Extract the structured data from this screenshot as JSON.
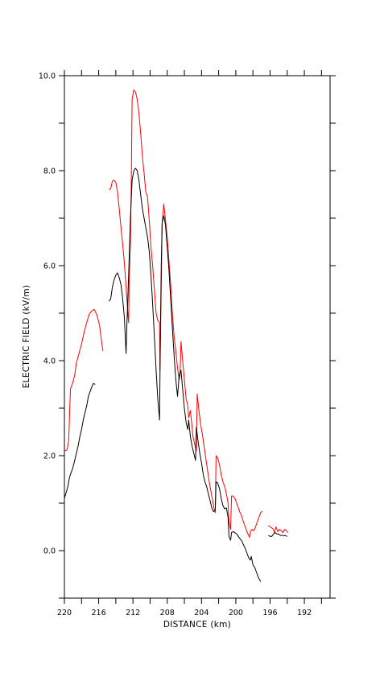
{
  "chart_data": {
    "type": "line",
    "title": "",
    "xlabel": "DISTANCE (km)",
    "ylabel": "ELECTRIC FIELD (kV/m)",
    "xlim": [
      220,
      189
    ],
    "ylim": [
      -1.0,
      10.0
    ],
    "x_reversed": true,
    "x_ticks": [
      220,
      216,
      212,
      208,
      204,
      200,
      196,
      192
    ],
    "x_tick_labels": [
      "220",
      "216",
      "212",
      "208",
      "204",
      "200",
      "196",
      "192"
    ],
    "x_minor_ticks": [
      218,
      214,
      210,
      206,
      202,
      198,
      194,
      190
    ],
    "y_ticks": [
      0,
      2,
      4,
      6,
      8,
      10
    ],
    "y_tick_labels": [
      "0.0",
      "2.0",
      "4.0",
      "6.0",
      "8.0",
      "10.0"
    ],
    "y_minor_ticks": [
      -1,
      1,
      3,
      5,
      7,
      9
    ],
    "grid": false,
    "series_colors": [
      "#ff0000",
      "#000000"
    ],
    "series": [
      {
        "color": "#ff0000",
        "segments": [
          [
            [
              220.0,
              2.1
            ],
            [
              219.7,
              2.12
            ],
            [
              219.5,
              2.3
            ],
            [
              219.3,
              3.4
            ],
            [
              219.0,
              3.55
            ],
            [
              218.8,
              3.7
            ],
            [
              218.6,
              3.95
            ],
            [
              218.3,
              4.15
            ],
            [
              218.0,
              4.35
            ],
            [
              217.7,
              4.6
            ],
            [
              217.4,
              4.8
            ],
            [
              217.1,
              4.98
            ],
            [
              216.8,
              5.05
            ],
            [
              216.5,
              5.08
            ],
            [
              216.2,
              4.95
            ],
            [
              215.9,
              4.75
            ],
            [
              215.7,
              4.45
            ],
            [
              215.5,
              4.2
            ]
          ],
          [
            [
              214.8,
              7.6
            ],
            [
              214.6,
              7.62
            ],
            [
              214.4,
              7.78
            ],
            [
              214.2,
              7.8
            ],
            [
              214.0,
              7.75
            ],
            [
              213.8,
              7.55
            ],
            [
              213.6,
              7.2
            ],
            [
              213.4,
              6.8
            ],
            [
              213.2,
              6.45
            ],
            [
              213.0,
              6.05
            ],
            [
              212.8,
              5.55
            ],
            [
              212.6,
              5.0
            ],
            [
              212.5,
              4.8
            ],
            [
              212.45,
              5.6
            ],
            [
              212.3,
              6.5
            ],
            [
              212.2,
              7.6
            ],
            [
              212.1,
              9.5
            ],
            [
              211.9,
              9.7
            ],
            [
              211.7,
              9.65
            ],
            [
              211.5,
              9.5
            ],
            [
              211.3,
              9.2
            ],
            [
              211.1,
              8.8
            ],
            [
              210.9,
              8.3
            ],
            [
              210.7,
              7.95
            ],
            [
              210.5,
              7.55
            ],
            [
              210.3,
              7.45
            ],
            [
              210.1,
              6.95
            ],
            [
              209.9,
              6.4
            ],
            [
              209.7,
              6.0
            ],
            [
              209.5,
              5.5
            ],
            [
              209.3,
              5.0
            ],
            [
              209.1,
              4.85
            ],
            [
              208.9,
              4.8
            ],
            [
              208.85,
              3.8
            ],
            [
              208.75,
              5.0
            ],
            [
              208.6,
              6.9
            ],
            [
              208.4,
              7.3
            ],
            [
              208.2,
              6.95
            ],
            [
              208.0,
              6.6
            ],
            [
              207.8,
              6.1
            ],
            [
              207.6,
              5.6
            ],
            [
              207.4,
              5.0
            ],
            [
              207.2,
              4.5
            ],
            [
              207.0,
              4.2
            ],
            [
              206.8,
              3.85
            ],
            [
              206.6,
              3.6
            ],
            [
              206.5,
              3.7
            ],
            [
              206.4,
              4.4
            ],
            [
              206.2,
              4.0
            ],
            [
              206.0,
              3.6
            ],
            [
              205.8,
              3.2
            ],
            [
              205.6,
              3.05
            ],
            [
              205.5,
              2.8
            ],
            [
              205.3,
              2.95
            ],
            [
              205.1,
              2.6
            ],
            [
              205.0,
              2.4
            ],
            [
              204.8,
              2.25
            ],
            [
              204.6,
              2.1
            ],
            [
              204.5,
              3.3
            ],
            [
              204.3,
              2.95
            ],
            [
              204.1,
              2.65
            ],
            [
              203.9,
              2.45
            ],
            [
              203.7,
              2.2
            ],
            [
              203.5,
              1.95
            ],
            [
              203.3,
              1.7
            ],
            [
              203.1,
              1.45
            ],
            [
              202.9,
              1.25
            ],
            [
              202.7,
              1.05
            ],
            [
              202.5,
              0.85
            ],
            [
              202.4,
              0.8
            ],
            [
              202.3,
              2.0
            ],
            [
              202.1,
              1.95
            ],
            [
              201.9,
              1.8
            ],
            [
              201.7,
              1.6
            ],
            [
              201.5,
              1.45
            ],
            [
              201.3,
              1.35
            ],
            [
              201.1,
              1.2
            ],
            [
              200.9,
              1.0
            ],
            [
              200.8,
              0.6
            ],
            [
              200.6,
              0.45
            ],
            [
              200.5,
              1.15
            ],
            [
              200.3,
              1.15
            ],
            [
              200.1,
              1.1
            ],
            [
              199.9,
              1.0
            ],
            [
              199.7,
              0.9
            ],
            [
              199.5,
              0.8
            ],
            [
              199.3,
              0.72
            ],
            [
              199.1,
              0.6
            ],
            [
              198.9,
              0.5
            ],
            [
              198.7,
              0.4
            ],
            [
              198.5,
              0.32
            ],
            [
              198.4,
              0.28
            ],
            [
              198.3,
              0.4
            ],
            [
              198.1,
              0.45
            ],
            [
              197.9,
              0.42
            ],
            [
              197.7,
              0.5
            ],
            [
              197.5,
              0.6
            ],
            [
              197.3,
              0.7
            ],
            [
              197.1,
              0.8
            ],
            [
              196.9,
              0.83
            ]
          ],
          [
            [
              196.2,
              0.53
            ],
            [
              196.0,
              0.5
            ],
            [
              195.8,
              0.48
            ],
            [
              195.6,
              0.45
            ],
            [
              195.5,
              0.38
            ],
            [
              195.3,
              0.5
            ],
            [
              195.1,
              0.4
            ],
            [
              194.9,
              0.45
            ],
            [
              194.7,
              0.42
            ],
            [
              194.5,
              0.38
            ],
            [
              194.3,
              0.45
            ],
            [
              194.1,
              0.42
            ],
            [
              193.9,
              0.38
            ]
          ]
        ]
      },
      {
        "color": "#000000",
        "segments": [
          [
            [
              220.0,
              1.1
            ],
            [
              219.8,
              1.22
            ],
            [
              219.6,
              1.35
            ],
            [
              219.4,
              1.55
            ],
            [
              219.2,
              1.65
            ],
            [
              219.0,
              1.75
            ],
            [
              218.8,
              1.9
            ],
            [
              218.6,
              2.05
            ],
            [
              218.4,
              2.2
            ],
            [
              218.2,
              2.4
            ],
            [
              218.0,
              2.55
            ],
            [
              217.8,
              2.75
            ],
            [
              217.6,
              2.9
            ],
            [
              217.4,
              3.05
            ],
            [
              217.2,
              3.25
            ],
            [
              217.0,
              3.35
            ],
            [
              216.8,
              3.45
            ],
            [
              216.6,
              3.52
            ],
            [
              216.4,
              3.5
            ]
          ],
          [
            [
              214.8,
              5.25
            ],
            [
              214.6,
              5.3
            ],
            [
              214.4,
              5.55
            ],
            [
              214.2,
              5.7
            ],
            [
              214.0,
              5.8
            ],
            [
              213.8,
              5.85
            ],
            [
              213.6,
              5.75
            ],
            [
              213.4,
              5.6
            ],
            [
              213.2,
              5.3
            ],
            [
              213.0,
              4.9
            ],
            [
              212.8,
              4.15
            ],
            [
              212.7,
              4.8
            ],
            [
              212.5,
              5.8
            ],
            [
              212.3,
              7.0
            ],
            [
              212.1,
              7.8
            ],
            [
              211.9,
              8.0
            ],
            [
              211.7,
              8.05
            ],
            [
              211.5,
              8.0
            ],
            [
              211.3,
              7.8
            ],
            [
              211.1,
              7.5
            ],
            [
              210.9,
              7.2
            ],
            [
              210.7,
              7.0
            ],
            [
              210.5,
              6.8
            ],
            [
              210.3,
              6.6
            ],
            [
              210.1,
              6.3
            ],
            [
              209.9,
              5.8
            ],
            [
              209.7,
              5.2
            ],
            [
              209.5,
              4.5
            ],
            [
              209.3,
              3.8
            ],
            [
              209.1,
              3.2
            ],
            [
              208.9,
              2.75
            ],
            [
              208.8,
              4.5
            ],
            [
              208.7,
              6.0
            ],
            [
              208.6,
              6.9
            ],
            [
              208.4,
              7.05
            ],
            [
              208.2,
              6.85
            ],
            [
              208.0,
              6.4
            ],
            [
              207.8,
              5.9
            ],
            [
              207.6,
              5.3
            ],
            [
              207.4,
              4.7
            ],
            [
              207.2,
              4.1
            ],
            [
              207.0,
              3.6
            ],
            [
              206.8,
              3.25
            ],
            [
              206.6,
              3.7
            ],
            [
              206.4,
              3.8
            ],
            [
              206.2,
              3.4
            ],
            [
              206.0,
              3.0
            ],
            [
              205.8,
              2.7
            ],
            [
              205.6,
              2.55
            ],
            [
              205.5,
              2.75
            ],
            [
              205.3,
              2.4
            ],
            [
              205.1,
              2.2
            ],
            [
              204.9,
              2.05
            ],
            [
              204.7,
              1.9
            ],
            [
              204.6,
              2.6
            ],
            [
              204.4,
              2.3
            ],
            [
              204.2,
              2.05
            ],
            [
              204.0,
              1.85
            ],
            [
              203.8,
              1.6
            ],
            [
              203.6,
              1.45
            ],
            [
              203.4,
              1.35
            ],
            [
              203.2,
              1.2
            ],
            [
              203.0,
              1.05
            ],
            [
              202.8,
              0.9
            ],
            [
              202.6,
              0.82
            ],
            [
              202.4,
              0.85
            ],
            [
              202.3,
              1.45
            ],
            [
              202.1,
              1.42
            ],
            [
              201.9,
              1.3
            ],
            [
              201.7,
              1.1
            ],
            [
              201.5,
              0.95
            ],
            [
              201.3,
              0.88
            ],
            [
              201.1,
              0.9
            ],
            [
              200.9,
              0.7
            ],
            [
              200.8,
              0.3
            ],
            [
              200.6,
              0.22
            ],
            [
              200.5,
              0.38
            ],
            [
              200.3,
              0.4
            ],
            [
              200.1,
              0.38
            ],
            [
              199.9,
              0.35
            ],
            [
              199.7,
              0.3
            ],
            [
              199.5,
              0.25
            ],
            [
              199.3,
              0.2
            ],
            [
              199.1,
              0.12
            ],
            [
              198.9,
              0.05
            ],
            [
              198.7,
              -0.05
            ],
            [
              198.5,
              -0.15
            ],
            [
              198.3,
              -0.2
            ],
            [
              198.2,
              -0.12
            ],
            [
              198.0,
              -0.3
            ],
            [
              197.8,
              -0.35
            ],
            [
              197.6,
              -0.45
            ],
            [
              197.4,
              -0.55
            ],
            [
              197.2,
              -0.62
            ],
            [
              197.1,
              -0.65
            ]
          ],
          [
            [
              196.2,
              0.32
            ],
            [
              196.0,
              0.3
            ],
            [
              195.8,
              0.3
            ],
            [
              195.6,
              0.35
            ],
            [
              195.4,
              0.38
            ],
            [
              195.2,
              0.35
            ],
            [
              195.0,
              0.35
            ],
            [
              194.8,
              0.32
            ],
            [
              194.6,
              0.32
            ],
            [
              194.3,
              0.32
            ],
            [
              194.0,
              0.3
            ]
          ]
        ]
      }
    ]
  }
}
